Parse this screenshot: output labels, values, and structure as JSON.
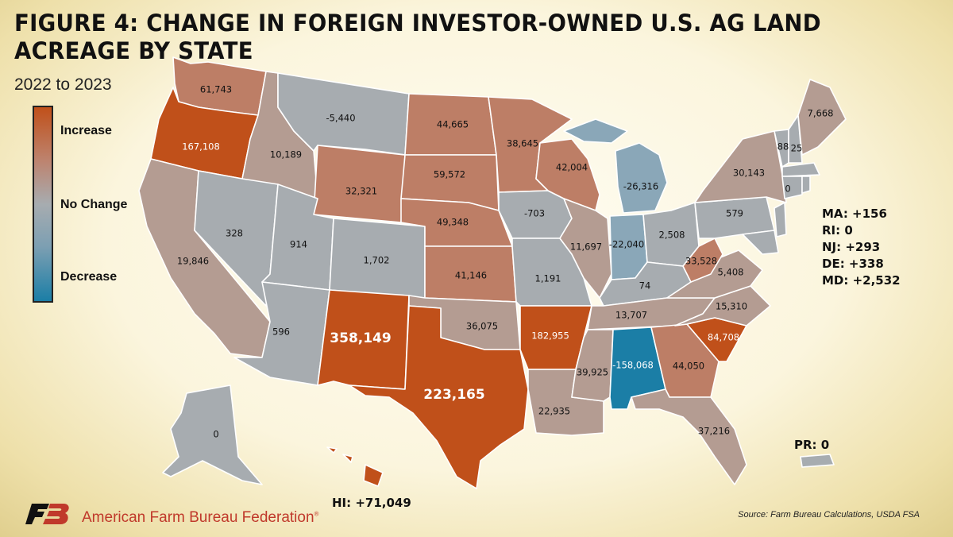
{
  "title": "FIGURE 4: CHANGE IN FOREIGN INVESTOR-OWNED U.S. AG LAND ACREAGE BY STATE",
  "subtitle": "2022 to 2023",
  "legend": {
    "increase": "Increase",
    "no_change": "No Change",
    "decrease": "Decrease",
    "colors": {
      "increase": "#c0501a",
      "no_change": "#a7acb0",
      "decrease": "#1b7ea6"
    }
  },
  "colors": {
    "strong_increase": "#c0501a",
    "medium_increase": "#bd7e66",
    "light_increase": "#b49c92",
    "no_change": "#a7acb0",
    "light_decrease": "#8aa7b8",
    "strong_decrease": "#1b7ea6"
  },
  "states": [
    {
      "id": "WA",
      "value": "61,743"
    },
    {
      "id": "OR",
      "value": "167,108"
    },
    {
      "id": "CA",
      "value": "19,846"
    },
    {
      "id": "ID",
      "value": "10,189"
    },
    {
      "id": "NV",
      "value": "328"
    },
    {
      "id": "MT",
      "value": "-5,440"
    },
    {
      "id": "WY",
      "value": "32,321"
    },
    {
      "id": "UT",
      "value": "914"
    },
    {
      "id": "CO",
      "value": "1,702"
    },
    {
      "id": "AZ",
      "value": "596"
    },
    {
      "id": "NM",
      "value": "358,149"
    },
    {
      "id": "ND",
      "value": "44,665"
    },
    {
      "id": "SD",
      "value": "59,572"
    },
    {
      "id": "NE",
      "value": "49,348"
    },
    {
      "id": "KS",
      "value": "41,146"
    },
    {
      "id": "OK",
      "value": "36,075"
    },
    {
      "id": "TX",
      "value": "223,165"
    },
    {
      "id": "MN",
      "value": "38,645"
    },
    {
      "id": "IA",
      "value": "-703"
    },
    {
      "id": "MO",
      "value": "1,191"
    },
    {
      "id": "AR",
      "value": "182,955"
    },
    {
      "id": "LA",
      "value": "22,935"
    },
    {
      "id": "WI",
      "value": "42,004"
    },
    {
      "id": "IL",
      "value": "11,697"
    },
    {
      "id": "MI",
      "value": "-26,316"
    },
    {
      "id": "IN",
      "value": "-22,040"
    },
    {
      "id": "OH",
      "value": "2,508"
    },
    {
      "id": "KY",
      "value": "74"
    },
    {
      "id": "TN",
      "value": "13,707"
    },
    {
      "id": "MS",
      "value": "39,925"
    },
    {
      "id": "AL",
      "value": "-158,068"
    },
    {
      "id": "GA",
      "value": "44,050"
    },
    {
      "id": "FL",
      "value": "37,216"
    },
    {
      "id": "SC",
      "value": "84,708"
    },
    {
      "id": "NC",
      "value": "15,310"
    },
    {
      "id": "VA",
      "value": "5,408"
    },
    {
      "id": "WV",
      "value": "33,528"
    },
    {
      "id": "PA",
      "value": "579"
    },
    {
      "id": "NY",
      "value": "30,143"
    },
    {
      "id": "VT",
      "value": "88"
    },
    {
      "id": "NH",
      "value": "25"
    },
    {
      "id": "ME",
      "value": "7,668"
    },
    {
      "id": "CT",
      "value": "0"
    },
    {
      "id": "AK",
      "value": "0"
    }
  ],
  "side_values": {
    "ma": "MA: +156",
    "ri": "RI: 0",
    "nj": "NJ: +293",
    "de": "DE: +338",
    "md": "MD: +2,532",
    "pr": "PR: 0",
    "hi": "HI: +71,049"
  },
  "footer": {
    "organization": "American Farm Bureau Federation",
    "registered_mark": "®",
    "source": "Source: Farm Bureau Calculations, USDA FSA"
  }
}
